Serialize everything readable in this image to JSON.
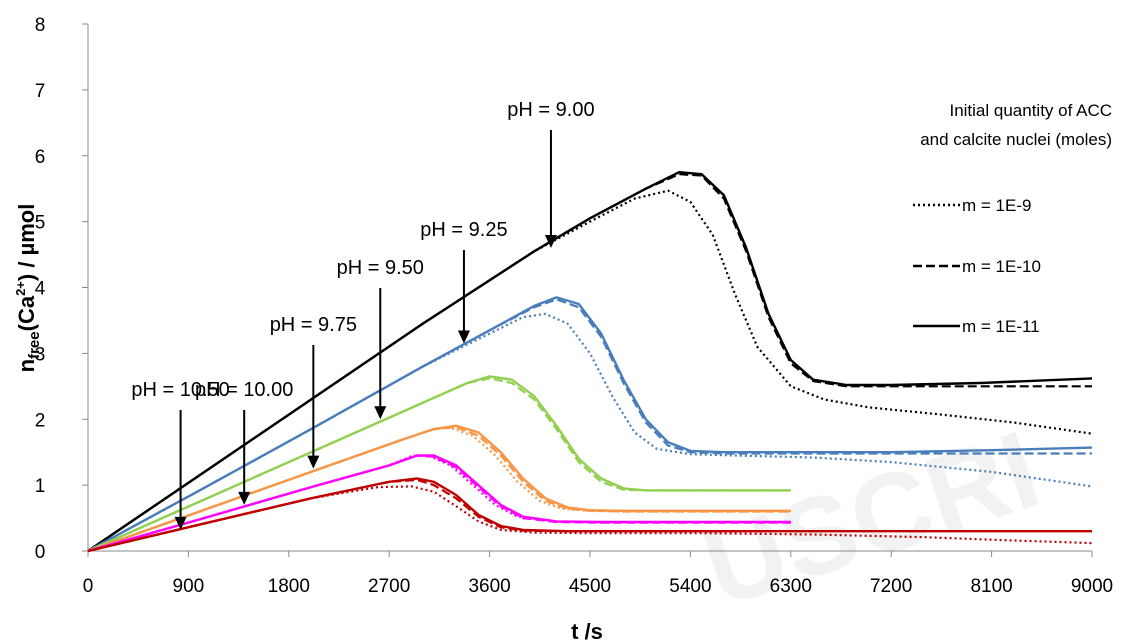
{
  "chart_data": {
    "type": "line",
    "xlabel": "t /s",
    "ylabel_main": "n",
    "ylabel_sub": "free",
    "ylabel_rest": "(Ca",
    "ylabel_sup": "2+",
    "ylabel_end": ") / µmol",
    "xlim": [
      0,
      9000
    ],
    "ylim": [
      0,
      8
    ],
    "xticks": [
      0,
      900,
      1800,
      2700,
      3600,
      4500,
      5400,
      6300,
      7200,
      8100,
      9000
    ],
    "yticks": [
      0,
      1,
      2,
      3,
      4,
      5,
      6,
      7,
      8
    ],
    "legend": {
      "title_line1": "Initial quantity of  ACC",
      "title_line2": "and calcite nuclei (moles)",
      "entries": [
        {
          "label": "m = 1E-9",
          "style": "dotted"
        },
        {
          "label": "m = 1E-10",
          "style": "dashed"
        },
        {
          "label": "m = 1E-11",
          "style": "solid"
        }
      ]
    },
    "annotations": [
      {
        "text": "pH = 9.00",
        "x": 4150,
        "y": 4.6
      },
      {
        "text": "pH = 9.25",
        "x": 3370,
        "y": 3.15
      },
      {
        "text": "pH = 9.50",
        "x": 2620,
        "y": 2.0
      },
      {
        "text": "pH = 9.75",
        "x": 2020,
        "y": 1.25
      },
      {
        "text": "pH = 10.00",
        "x": 1400,
        "y": 0.7
      },
      {
        "text": "pH = 10.50",
        "x": 830,
        "y": 0.32
      }
    ],
    "series": [
      {
        "ph": "9.00",
        "color": "#000000",
        "variants": [
          {
            "style": "solid",
            "x": [
              0,
              1000,
              2000,
              3000,
              4000,
              4500,
              5000,
              5300,
              5500,
              5700,
              5900,
              6100,
              6300,
              6500,
              6800,
              7200,
              8000,
              9000
            ],
            "y": [
              0,
              1.15,
              2.3,
              3.45,
              4.55,
              5.05,
              5.5,
              5.75,
              5.72,
              5.4,
              4.6,
              3.6,
              2.9,
              2.6,
              2.52,
              2.52,
              2.55,
              2.62
            ]
          },
          {
            "style": "dashed",
            "x": [
              0,
              1000,
              2000,
              3000,
              4000,
              4500,
              5000,
              5300,
              5500,
              5700,
              5900,
              6100,
              6300,
              6500,
              6800,
              7200,
              8000,
              9000
            ],
            "y": [
              0,
              1.15,
              2.3,
              3.45,
              4.55,
              5.05,
              5.5,
              5.72,
              5.7,
              5.35,
              4.55,
              3.55,
              2.85,
              2.58,
              2.5,
              2.5,
              2.5,
              2.5
            ]
          },
          {
            "style": "dotted",
            "x": [
              0,
              1000,
              2000,
              3000,
              4000,
              4500,
              4900,
              5200,
              5400,
              5600,
              5800,
              6000,
              6300,
              6600,
              7000,
              7600,
              8300,
              9000
            ],
            "y": [
              0,
              1.15,
              2.3,
              3.45,
              4.55,
              5.0,
              5.35,
              5.47,
              5.3,
              4.8,
              3.9,
              3.1,
              2.5,
              2.3,
              2.18,
              2.08,
              1.95,
              1.78
            ]
          }
        ]
      },
      {
        "ph": "9.25",
        "color": "#4a7ebb",
        "variants": [
          {
            "style": "solid",
            "x": [
              0,
              1000,
              2000,
              3000,
              3600,
              4000,
              4200,
              4400,
              4600,
              4800,
              5000,
              5200,
              5400,
              5700,
              6300,
              7200,
              8100,
              9000
            ],
            "y": [
              0,
              0.92,
              1.85,
              2.8,
              3.35,
              3.72,
              3.85,
              3.75,
              3.3,
              2.6,
              2.0,
              1.65,
              1.52,
              1.5,
              1.5,
              1.5,
              1.53,
              1.57
            ]
          },
          {
            "style": "dashed",
            "x": [
              0,
              1000,
              2000,
              3000,
              3600,
              4000,
              4200,
              4400,
              4600,
              4800,
              5000,
              5200,
              5400,
              5700,
              6300,
              7200,
              8100,
              9000
            ],
            "y": [
              0,
              0.92,
              1.85,
              2.8,
              3.35,
              3.7,
              3.82,
              3.7,
              3.25,
              2.55,
              1.95,
              1.6,
              1.5,
              1.48,
              1.48,
              1.48,
              1.48,
              1.48
            ]
          },
          {
            "style": "dotted",
            "x": [
              0,
              1000,
              2000,
              3000,
              3600,
              3900,
              4100,
              4300,
              4500,
              4700,
              4900,
              5100,
              5400,
              5800,
              6500,
              7200,
              8100,
              9000
            ],
            "y": [
              0,
              0.92,
              1.85,
              2.8,
              3.3,
              3.55,
              3.6,
              3.45,
              3.0,
              2.35,
              1.8,
              1.55,
              1.47,
              1.45,
              1.42,
              1.35,
              1.2,
              0.98
            ]
          }
        ]
      },
      {
        "ph": "9.50",
        "color": "#92d050",
        "variants": [
          {
            "style": "solid",
            "x": [
              0,
              1000,
              2000,
              3000,
              3400,
              3600,
              3800,
              4000,
              4200,
              4400,
              4600,
              4800,
              5000,
              5300,
              5700,
              6300
            ],
            "y": [
              0,
              0.75,
              1.5,
              2.25,
              2.55,
              2.65,
              2.6,
              2.35,
              1.9,
              1.4,
              1.1,
              0.95,
              0.92,
              0.92,
              0.92,
              0.92
            ]
          },
          {
            "style": "dashed",
            "x": [
              0,
              1000,
              2000,
              3000,
              3400,
              3600,
              3800,
              4000,
              4200,
              4400,
              4600,
              4800,
              5000,
              5300,
              5700,
              6300
            ],
            "y": [
              0,
              0.75,
              1.5,
              2.25,
              2.55,
              2.62,
              2.55,
              2.3,
              1.85,
              1.35,
              1.05,
              0.93,
              0.92,
              0.92,
              0.92,
              0.92
            ]
          }
        ]
      },
      {
        "ph": "9.75",
        "color": "#f79646",
        "variants": [
          {
            "style": "solid",
            "x": [
              0,
              1000,
              2000,
              2800,
              3100,
              3300,
              3500,
              3700,
              3900,
              4100,
              4300,
              4500,
              4800,
              5300,
              6300
            ],
            "y": [
              0,
              0.6,
              1.2,
              1.68,
              1.85,
              1.9,
              1.8,
              1.5,
              1.1,
              0.8,
              0.66,
              0.62,
              0.61,
              0.61,
              0.61
            ]
          },
          {
            "style": "dashed",
            "x": [
              0,
              1000,
              2000,
              2800,
              3100,
              3300,
              3500,
              3700,
              3900,
              4100,
              4300,
              4500,
              4800,
              5300,
              6300
            ],
            "y": [
              0,
              0.6,
              1.2,
              1.68,
              1.85,
              1.88,
              1.75,
              1.45,
              1.05,
              0.76,
              0.64,
              0.61,
              0.6,
              0.6,
              0.6
            ]
          },
          {
            "style": "dotted",
            "x": [
              0,
              1000,
              2000,
              2800,
              3100,
              3250,
              3450,
              3650,
              3850,
              4050,
              4250,
              4500,
              4800,
              5300,
              6300
            ],
            "y": [
              0,
              0.6,
              1.2,
              1.68,
              1.85,
              1.87,
              1.75,
              1.45,
              1.05,
              0.76,
              0.64,
              0.61,
              0.6,
              0.6,
              0.6
            ]
          }
        ]
      },
      {
        "ph": "10.00",
        "color": "#ff00ff",
        "variants": [
          {
            "style": "solid",
            "x": [
              0,
              1000,
              2000,
              2700,
              2950,
              3100,
              3300,
              3500,
              3700,
              3900,
              4200,
              4600,
              5300,
              6300
            ],
            "y": [
              0,
              0.48,
              0.97,
              1.3,
              1.45,
              1.45,
              1.3,
              1.0,
              0.7,
              0.52,
              0.45,
              0.44,
              0.44,
              0.44
            ]
          },
          {
            "style": "dashed",
            "x": [
              0,
              1000,
              2000,
              2700,
              2950,
              3100,
              3300,
              3500,
              3700,
              3900,
              4200,
              4600,
              5300,
              6300
            ],
            "y": [
              0,
              0.48,
              0.97,
              1.3,
              1.45,
              1.43,
              1.27,
              0.97,
              0.68,
              0.5,
              0.44,
              0.43,
              0.43,
              0.43
            ]
          },
          {
            "style": "dotted",
            "x": [
              0,
              1000,
              2000,
              2700,
              2900,
              3050,
              3250,
              3450,
              3650,
              3850,
              4200,
              4600,
              5300,
              6300
            ],
            "y": [
              0,
              0.48,
              0.97,
              1.3,
              1.44,
              1.45,
              1.3,
              1.0,
              0.7,
              0.52,
              0.45,
              0.44,
              0.44,
              0.44
            ]
          }
        ]
      },
      {
        "ph": "10.50",
        "color": "#c00000",
        "variants": [
          {
            "style": "solid",
            "x": [
              0,
              1000,
              2000,
              2700,
              2950,
              3100,
              3300,
              3500,
              3700,
              3900,
              4300,
              5000,
              6000,
              7000,
              8000,
              9000
            ],
            "y": [
              0,
              0.4,
              0.8,
              1.05,
              1.1,
              1.05,
              0.85,
              0.55,
              0.38,
              0.32,
              0.3,
              0.3,
              0.3,
              0.3,
              0.3,
              0.3
            ]
          },
          {
            "style": "dashed",
            "x": [
              0,
              1000,
              2000,
              2700,
              2950,
              3100,
              3300,
              3500,
              3700,
              3900,
              4300,
              5000,
              6000,
              6500
            ],
            "y": [
              0,
              0.4,
              0.8,
              1.05,
              1.08,
              1.0,
              0.8,
              0.52,
              0.36,
              0.31,
              0.3,
              0.3,
              0.3,
              0.3
            ]
          },
          {
            "style": "dotted",
            "x": [
              0,
              1000,
              2000,
              2600,
              2900,
              3100,
              3300,
              3500,
              3700,
              4000,
              4500,
              5500,
              6500,
              7500,
              8300,
              9000
            ],
            "y": [
              0,
              0.4,
              0.8,
              0.97,
              0.98,
              0.9,
              0.68,
              0.45,
              0.32,
              0.28,
              0.27,
              0.27,
              0.25,
              0.21,
              0.16,
              0.12
            ]
          }
        ]
      }
    ]
  }
}
